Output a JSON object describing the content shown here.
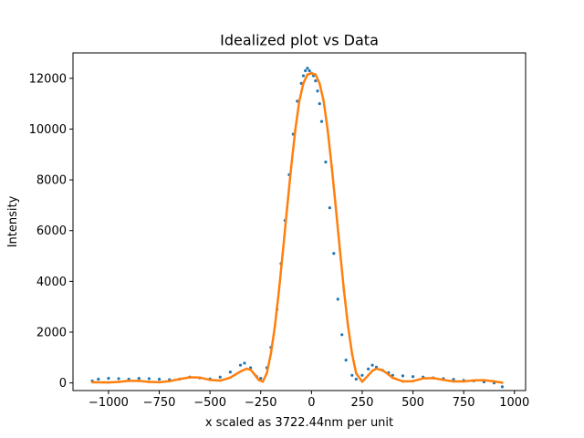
{
  "chart_data": {
    "type": "scatter",
    "title": "Idealized plot vs Data",
    "xlabel": "x scaled as 3722.44nm per unit",
    "ylabel": "Intensity",
    "xlim": [
      -1175,
      1055
    ],
    "ylim": [
      -300,
      13000
    ],
    "x_ticks": [
      -1000,
      -750,
      -500,
      -250,
      0,
      250,
      500,
      750,
      1000
    ],
    "y_ticks": [
      0,
      2000,
      4000,
      6000,
      8000,
      10000,
      12000
    ],
    "grid": false,
    "legend": "none",
    "series": [
      {
        "kind": "data-points",
        "color": "#1f77b4",
        "x": [
          -1080,
          -1050,
          -1000,
          -950,
          -900,
          -850,
          -800,
          -750,
          -700,
          -650,
          -600,
          -550,
          -500,
          -450,
          -400,
          -350,
          -330,
          -300,
          -270,
          -250,
          -220,
          -200,
          -170,
          -150,
          -130,
          -110,
          -90,
          -70,
          -50,
          -40,
          -30,
          -20,
          -10,
          0,
          10,
          20,
          30,
          40,
          50,
          70,
          90,
          110,
          130,
          150,
          170,
          200,
          220,
          250,
          280,
          300,
          320,
          350,
          380,
          400,
          450,
          500,
          550,
          600,
          650,
          700,
          750,
          800,
          850,
          900,
          940
        ],
        "y": [
          80,
          150,
          180,
          170,
          150,
          180,
          170,
          150,
          130,
          150,
          230,
          200,
          160,
          230,
          430,
          700,
          780,
          600,
          250,
          180,
          600,
          1400,
          2900,
          4700,
          6400,
          8200,
          9800,
          11100,
          11800,
          12100,
          12300,
          12400,
          12300,
          12200,
          12100,
          11900,
          11500,
          11000,
          10300,
          8700,
          6900,
          5100,
          3300,
          1900,
          900,
          300,
          150,
          300,
          550,
          700,
          620,
          500,
          400,
          300,
          280,
          250,
          230,
          200,
          170,
          140,
          100,
          80,
          40,
          0,
          -150
        ]
      },
      {
        "kind": "idealized-curve",
        "color": "#ff7f0e",
        "x": [
          -1080,
          -1000,
          -950,
          -900,
          -850,
          -800,
          -750,
          -700,
          -650,
          -600,
          -550,
          -500,
          -450,
          -400,
          -350,
          -320,
          -300,
          -280,
          -260,
          -240,
          -220,
          -200,
          -180,
          -160,
          -140,
          -120,
          -100,
          -80,
          -60,
          -40,
          -20,
          0,
          20,
          40,
          60,
          80,
          100,
          120,
          140,
          160,
          180,
          200,
          220,
          250,
          280,
          300,
          320,
          350,
          380,
          400,
          450,
          500,
          550,
          600,
          650,
          700,
          750,
          800,
          850,
          900,
          940
        ],
        "y": [
          30,
          20,
          40,
          80,
          80,
          40,
          30,
          70,
          150,
          220,
          210,
          120,
          90,
          210,
          450,
          560,
          520,
          330,
          120,
          50,
          380,
          1150,
          2250,
          3650,
          5250,
          6900,
          8500,
          9950,
          11100,
          11800,
          12150,
          12200,
          12150,
          11800,
          11100,
          9950,
          8500,
          6900,
          5250,
          3650,
          2250,
          1150,
          380,
          50,
          300,
          480,
          560,
          500,
          330,
          200,
          60,
          70,
          180,
          190,
          120,
          60,
          60,
          100,
          110,
          60,
          10
        ]
      }
    ]
  }
}
